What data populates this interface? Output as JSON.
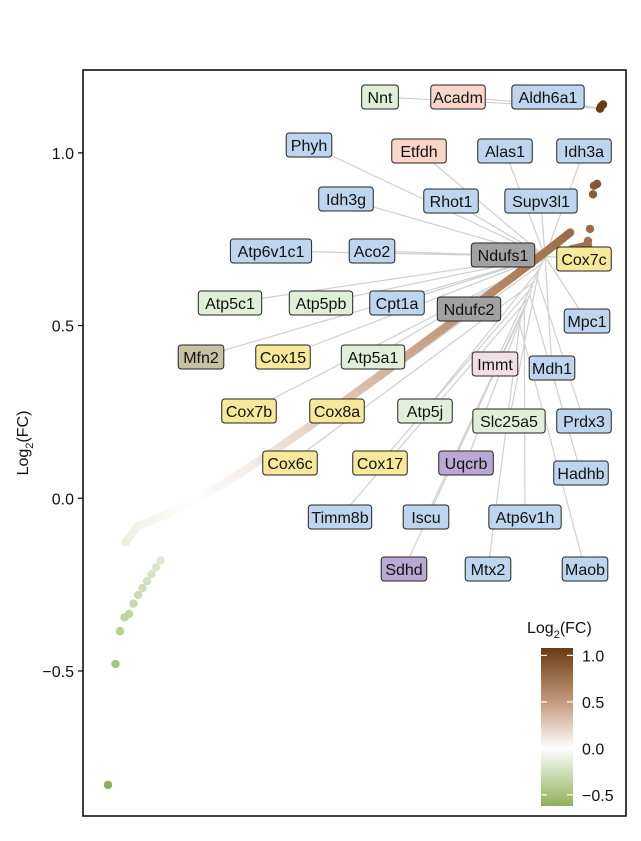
{
  "chart_data": {
    "type": "scatter",
    "ylabel": {
      "base": "Log",
      "sub": "2",
      "rest": "(FC)"
    },
    "ylim": [
      -0.92,
      1.24
    ],
    "y_ticks": [
      {
        "value": 1.0,
        "label": "1.0"
      },
      {
        "value": 0.5,
        "label": "0.5"
      },
      {
        "value": 0.0,
        "label": "0.0"
      },
      {
        "value": -0.5,
        "label": "−0.5"
      }
    ],
    "grid": false,
    "point_range": {
      "n": 330,
      "min": -0.83,
      "max": 1.14
    },
    "top_points": [
      1.14,
      1.134,
      1.128,
      0.91,
      0.905,
      0.88,
      0.78,
      0.745
    ],
    "bottom_points": [
      -0.83,
      -0.48,
      -0.385,
      -0.345,
      -0.335,
      -0.305,
      -0.28,
      -0.26,
      -0.24,
      -0.22,
      -0.2,
      -0.18
    ],
    "color_scale": {
      "title": {
        "base": "Log",
        "sub": "2",
        "rest": "(FC)"
      },
      "domain": [
        -0.62,
        1.08
      ],
      "stops": [
        {
          "value": -0.62,
          "color": "#8db05a"
        },
        {
          "value": 0.0,
          "color": "#ffffff"
        },
        {
          "value": 0.5,
          "color": "#c49a7c"
        },
        {
          "value": 1.08,
          "color": "#6b3b12"
        }
      ],
      "ticks": [
        {
          "value": 1.0,
          "label": "1.0"
        },
        {
          "value": 0.5,
          "label": "0.5"
        },
        {
          "value": 0.0,
          "label": "0.0"
        },
        {
          "value": -0.5,
          "label": "−0.5"
        }
      ]
    },
    "category_colors": {
      "blue": "#bdd5ee",
      "salmon": "#f9d6c8",
      "light_green": "#e1efda",
      "yellow": "#f7e89a",
      "gray": "#a1a1a1",
      "taupe": "#c7c0a3",
      "purple": "#b9a8d3",
      "pink": "#f0e0e5"
    },
    "annotations": [
      {
        "text": "Nnt",
        "color": "light_green",
        "y": 1.16
      },
      {
        "text": "Acadm",
        "color": "salmon",
        "y": 1.16
      },
      {
        "text": "Aldh6a1",
        "color": "blue",
        "y": 1.16
      },
      {
        "text": "Phyh",
        "color": "blue",
        "y": 1.02
      },
      {
        "text": "Etfdh",
        "color": "salmon",
        "y": 1.0
      },
      {
        "text": "Alas1",
        "color": "blue",
        "y": 1.0
      },
      {
        "text": "Idh3a",
        "color": "blue",
        "y": 1.0
      },
      {
        "text": "Idh3g",
        "color": "blue",
        "y": 0.86
      },
      {
        "text": "Rhot1",
        "color": "blue",
        "y": 0.86
      },
      {
        "text": "Supv3l1",
        "color": "blue",
        "y": 0.86
      },
      {
        "text": "Atp6v1c1",
        "color": "blue",
        "y": 0.72
      },
      {
        "text": "Aco2",
        "color": "blue",
        "y": 0.72
      },
      {
        "text": "Ndufs1",
        "color": "gray",
        "y": 0.71
      },
      {
        "text": "Cox7c",
        "color": "yellow",
        "y": 0.695
      },
      {
        "text": "Atp5c1",
        "color": "light_green",
        "y": 0.565
      },
      {
        "text": "Atp5pb",
        "color": "light_green",
        "y": 0.565
      },
      {
        "text": "Cpt1a",
        "color": "blue",
        "y": 0.565
      },
      {
        "text": "Ndufc2",
        "color": "gray",
        "y": 0.55
      },
      {
        "text": "Mpc1",
        "color": "blue",
        "y": 0.51
      },
      {
        "text": "Mfn2",
        "color": "taupe",
        "y": 0.41
      },
      {
        "text": "Cox15",
        "color": "yellow",
        "y": 0.41
      },
      {
        "text": "Atp5a1",
        "color": "light_green",
        "y": 0.41
      },
      {
        "text": "Immt",
        "color": "pink",
        "y": 0.39
      },
      {
        "text": "Mdh1",
        "color": "blue",
        "y": 0.375
      },
      {
        "text": "Cox7b",
        "color": "yellow",
        "y": 0.255
      },
      {
        "text": "Cox8a",
        "color": "yellow",
        "y": 0.255
      },
      {
        "text": "Atp5j",
        "color": "light_green",
        "y": 0.255
      },
      {
        "text": "Slc25a5",
        "color": "light_green",
        "y": 0.22
      },
      {
        "text": "Prdx3",
        "color": "blue",
        "y": 0.22
      },
      {
        "text": "Cox6c",
        "color": "yellow",
        "y": 0.1
      },
      {
        "text": "Cox17",
        "color": "yellow",
        "y": 0.1
      },
      {
        "text": "Uqcrb",
        "color": "purple",
        "y": 0.1
      },
      {
        "text": "Hadhb",
        "color": "blue",
        "y": 0.065
      },
      {
        "text": "Timm8b",
        "color": "blue",
        "y": -0.055
      },
      {
        "text": "Iscu",
        "color": "blue",
        "y": -0.055
      },
      {
        "text": "Atp6v1h",
        "color": "blue",
        "y": -0.055
      },
      {
        "text": "Sdhd",
        "color": "purple",
        "y": -0.21
      },
      {
        "text": "Mtx2",
        "color": "blue",
        "y": -0.21
      },
      {
        "text": "Maob",
        "color": "blue",
        "y": -0.21
      }
    ]
  }
}
